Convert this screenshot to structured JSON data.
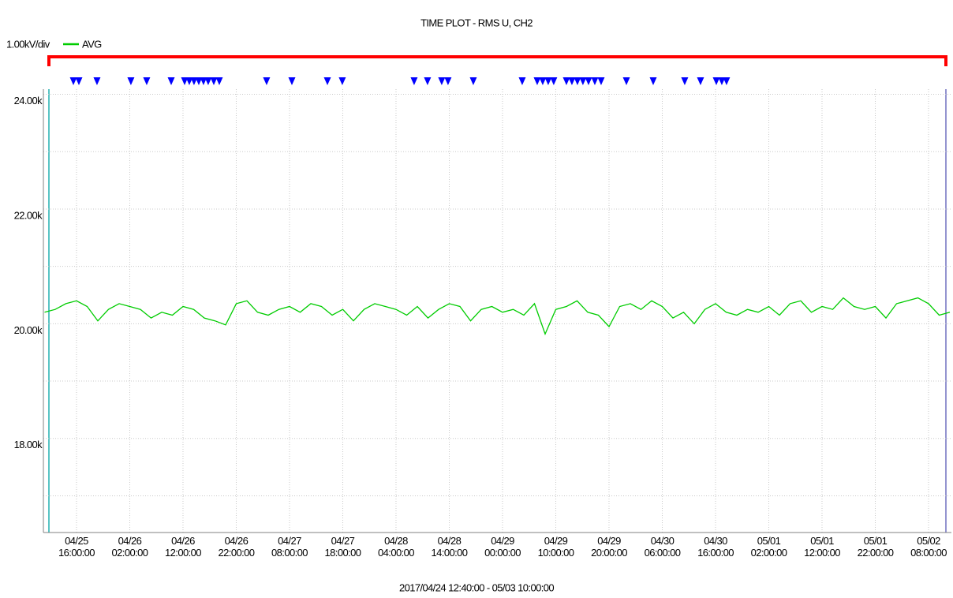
{
  "chart_data": {
    "type": "line",
    "title": "TIME PLOT - RMS  U, CH2",
    "scale_label": "1.00kV/div",
    "subtitle": "2017/04/24 12:40:00 - 05/03 10:00:00",
    "grid": true,
    "xlim": [
      "04/25 09:47",
      "05/02 12:18"
    ],
    "xticks": [
      "04/25 16:00:00",
      "04/26 02:00:00",
      "04/26 12:00:00",
      "04/26 22:00:00",
      "04/27 08:00:00",
      "04/27 18:00:00",
      "04/28 04:00:00",
      "04/28 14:00:00",
      "04/29 00:00:00",
      "04/29 10:00:00",
      "04/29 20:00:00",
      "04/30 06:00:00",
      "04/30 16:00:00",
      "05/01 02:00:00",
      "05/01 12:00:00",
      "05/01 22:00:00",
      "05/02 08:00:00"
    ],
    "ylim": [
      16360,
      24090
    ],
    "yticks": [
      {
        "value": 17000,
        "label": null
      },
      {
        "value": 18000,
        "label": "18.00k"
      },
      {
        "value": 19000,
        "label": null
      },
      {
        "value": 20000,
        "label": "20.00k"
      },
      {
        "value": 21000,
        "label": null
      },
      {
        "value": 22000,
        "label": "22.00k"
      },
      {
        "value": 23000,
        "label": null
      },
      {
        "value": 24000,
        "label": "24.00k"
      }
    ],
    "x": [
      "04/25 10:00",
      "04/25 12:00",
      "04/25 14:00",
      "04/25 16:00",
      "04/25 18:00",
      "04/25 20:00",
      "04/25 22:00",
      "04/26 00:00",
      "04/26 02:00",
      "04/26 04:00",
      "04/26 06:00",
      "04/26 08:00",
      "04/26 10:00",
      "04/26 12:00",
      "04/26 14:00",
      "04/26 16:00",
      "04/26 18:00",
      "04/26 20:00",
      "04/26 22:00",
      "04/27 00:00",
      "04/27 02:00",
      "04/27 04:00",
      "04/27 06:00",
      "04/27 08:00",
      "04/27 10:00",
      "04/27 12:00",
      "04/27 14:00",
      "04/27 16:00",
      "04/27 18:00",
      "04/27 20:00",
      "04/27 22:00",
      "04/28 00:00",
      "04/28 02:00",
      "04/28 04:00",
      "04/28 06:00",
      "04/28 08:00",
      "04/28 10:00",
      "04/28 12:00",
      "04/28 14:00",
      "04/28 16:00",
      "04/28 18:00",
      "04/28 20:00",
      "04/28 22:00",
      "04/29 00:00",
      "04/29 02:00",
      "04/29 04:00",
      "04/29 06:00",
      "04/29 08:00",
      "04/29 10:00",
      "04/29 12:00",
      "04/29 14:00",
      "04/29 16:00",
      "04/29 18:00",
      "04/29 20:00",
      "04/29 22:00",
      "04/30 00:00",
      "04/30 02:00",
      "04/30 04:00",
      "04/30 06:00",
      "04/30 08:00",
      "04/30 10:00",
      "04/30 12:00",
      "04/30 14:00",
      "04/30 16:00",
      "04/30 18:00",
      "04/30 20:00",
      "04/30 22:00",
      "05/01 00:00",
      "05/01 02:00",
      "05/01 04:00",
      "05/01 06:00",
      "05/01 08:00",
      "05/01 10:00",
      "05/01 12:00",
      "05/01 14:00",
      "05/01 16:00",
      "05/01 18:00",
      "05/01 20:00",
      "05/01 22:00",
      "05/02 00:00",
      "05/02 02:00",
      "05/02 04:00",
      "05/02 06:00",
      "05/02 08:00",
      "05/02 10:00",
      "05/02 12:00"
    ],
    "series": [
      {
        "name": "AVG",
        "color": "#00cc00",
        "values": [
          20200,
          20250,
          20350,
          20400,
          20300,
          20050,
          20250,
          20350,
          20300,
          20250,
          20100,
          20200,
          20150,
          20300,
          20250,
          20100,
          20050,
          19980,
          20350,
          20400,
          20200,
          20150,
          20250,
          20300,
          20200,
          20350,
          20300,
          20150,
          20250,
          20050,
          20250,
          20350,
          20300,
          20250,
          20150,
          20300,
          20100,
          20250,
          20350,
          20300,
          20050,
          20250,
          20300,
          20200,
          20250,
          20150,
          20350,
          19820,
          20250,
          20300,
          20400,
          20200,
          20150,
          19950,
          20300,
          20350,
          20250,
          20400,
          20300,
          20100,
          20200,
          20000,
          20250,
          20350,
          20200,
          20150,
          20250,
          20200,
          20300,
          20150,
          20350,
          20400,
          20200,
          20300,
          20250,
          20450,
          20300,
          20250,
          20300,
          20100,
          20350,
          20400,
          20450,
          20350,
          20150,
          20200
        ]
      }
    ],
    "events": [
      "04/25 15:25",
      "04/25 16:27",
      "04/25 19:51",
      "04/26 02:13",
      "04/26 05:11",
      "04/26 09:47",
      "04/26 12:18",
      "04/26 13:11",
      "04/26 14:04",
      "04/26 14:58",
      "04/26 15:51",
      "04/26 16:44",
      "04/26 17:47",
      "04/26 18:49",
      "04/27 03:42",
      "04/27 08:27",
      "04/27 15:07",
      "04/27 17:55",
      "04/28 07:24",
      "04/28 09:55",
      "04/28 12:35",
      "04/28 13:46",
      "04/28 18:31",
      "04/29 03:42",
      "04/29 06:31",
      "04/29 07:33",
      "04/29 08:35",
      "04/29 09:37",
      "04/29 12:00",
      "04/29 13:02",
      "04/29 14:04",
      "04/29 15:06",
      "04/29 16:09",
      "04/29 17:20",
      "04/29 18:31",
      "04/29 23:16",
      "04/30 04:18",
      "04/30 10:13",
      "04/30 13:11",
      "04/30 16:09",
      "04/30 17:11",
      "04/30 18:04"
    ],
    "event_color": "#0000ff",
    "range_color": "#ff0000"
  }
}
